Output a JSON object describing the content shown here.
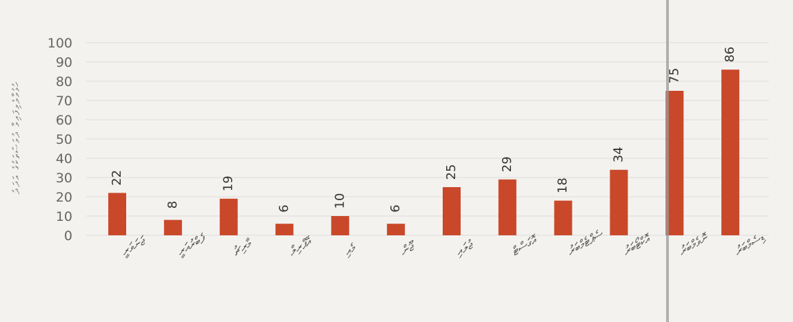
{
  "chart_data": {
    "type": "bar",
    "title": "",
    "xlabel": "",
    "ylabel": "ހުޅުވާލެވިފައިވާ ދުވަސްތަކުގެ އަދަދު",
    "ylim": [
      0,
      100
    ],
    "yticks": [
      0,
      10,
      20,
      30,
      40,
      50,
      60,
      70,
      80,
      90,
      100
    ],
    "grid": true,
    "categories": [
      "ޖަނަވަރީ",
      "ފެބްރުއަރީ",
      "މާރިޗު",
      "އޭޕްރިލް",
      "މެއި",
      "ޖޫން",
      "ޖުލައި",
      "އޮގަސްޓް",
      "ސެޕްޓެމްބަރު",
      "އޮކްޓޯބަރު",
      "ނޮވެމްބަރު",
      "ޑިސެމްބަރު"
    ],
    "values": [
      22,
      8,
      19,
      6,
      10,
      6,
      25,
      29,
      18,
      34,
      75,
      86
    ],
    "colors": {
      "bar": "#c9482a",
      "grid": "#dcdcdc",
      "axis_text": "#666666"
    }
  }
}
